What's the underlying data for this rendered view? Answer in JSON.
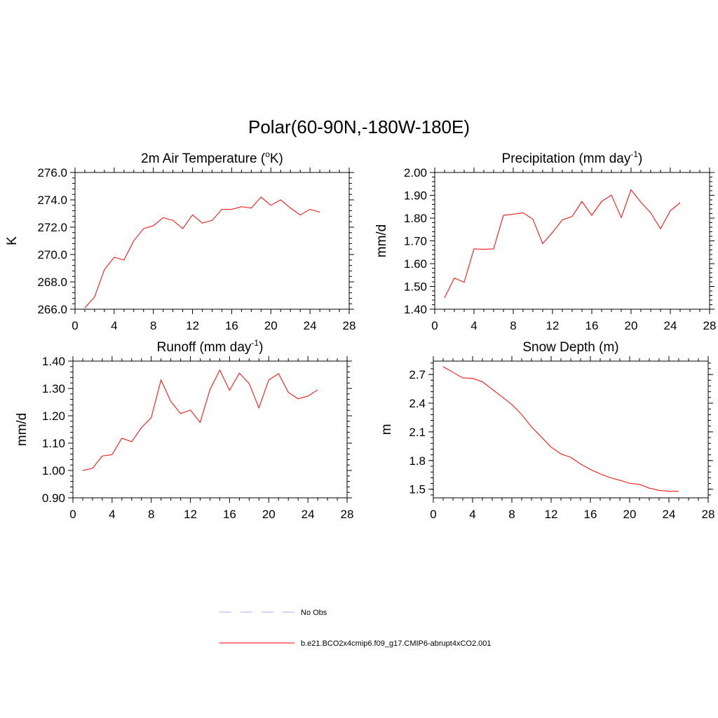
{
  "figure": {
    "title": "Polar(60-90N,-180W-180E)"
  },
  "colors": {
    "model": "#ff0000",
    "obs": "#aaaaff",
    "axis": "#000000",
    "background": "#ffffff"
  },
  "chart_data": [
    {
      "id": "temperature",
      "type": "line",
      "title": "2m Air Temperature (",
      "title_sup": "o",
      "title_after": "K)",
      "ylabel": "K",
      "xlim": [
        0,
        28
      ],
      "ylim": [
        266,
        276
      ],
      "xticks": [
        "0",
        "4",
        "8",
        "12",
        "16",
        "20",
        "24",
        "28"
      ],
      "yticks": [
        "266.0",
        "268.0",
        "270.0",
        "272.0",
        "274.0",
        "276.0"
      ],
      "x": [
        1,
        2,
        3,
        4,
        5,
        6,
        7,
        8,
        9,
        10,
        11,
        12,
        13,
        14,
        15,
        16,
        17,
        18,
        19,
        20,
        21,
        22,
        23,
        24,
        25
      ],
      "series": [
        {
          "name": "b.e21.BCO2x4cmip6.f09_g17.CMIP6-abrupt4xCO2.001",
          "values": [
            266.1,
            266.9,
            268.9,
            269.8,
            269.6,
            271.0,
            271.9,
            272.1,
            272.7,
            272.5,
            271.9,
            272.9,
            272.3,
            272.5,
            273.3,
            273.3,
            273.5,
            273.4,
            274.2,
            273.6,
            274.0,
            273.4,
            272.9,
            273.3,
            273.1
          ]
        }
      ]
    },
    {
      "id": "precipitation",
      "type": "line",
      "title": "Precipitation (mm day",
      "title_sup": "-1",
      "title_after": ")",
      "ylabel": "mm/d",
      "xlim": [
        0,
        28
      ],
      "ylim": [
        1.4,
        2.0
      ],
      "xticks": [
        "0",
        "4",
        "8",
        "12",
        "16",
        "20",
        "24",
        "28"
      ],
      "yticks": [
        "1.40",
        "1.50",
        "1.60",
        "1.70",
        "1.80",
        "1.90",
        "2.00"
      ],
      "x": [
        1,
        2,
        3,
        4,
        5,
        6,
        7,
        8,
        9,
        10,
        11,
        12,
        13,
        14,
        15,
        16,
        17,
        18,
        19,
        20,
        21,
        22,
        23,
        24,
        25
      ],
      "series": [
        {
          "name": "b.e21.BCO2x4cmip6.f09_g17.CMIP6-abrupt4xCO2.001",
          "values": [
            1.45,
            1.537,
            1.518,
            1.665,
            1.663,
            1.665,
            1.812,
            1.817,
            1.823,
            1.795,
            1.688,
            1.737,
            1.792,
            1.807,
            1.873,
            1.812,
            1.873,
            1.901,
            1.802,
            1.924,
            1.87,
            1.823,
            1.753,
            1.832,
            1.867
          ]
        }
      ]
    },
    {
      "id": "runoff",
      "type": "line",
      "title": "Runoff (mm day",
      "title_sup": "-1",
      "title_after": ")",
      "ylabel": "mm/d",
      "xlim": [
        0,
        28
      ],
      "ylim": [
        0.9,
        1.4
      ],
      "xticks": [
        "0",
        "4",
        "8",
        "12",
        "16",
        "20",
        "24",
        "28"
      ],
      "yticks": [
        "0.90",
        "1.00",
        "1.10",
        "1.20",
        "1.30",
        "1.40"
      ],
      "x": [
        1,
        2,
        3,
        4,
        5,
        6,
        7,
        8,
        9,
        10,
        11,
        12,
        13,
        14,
        15,
        16,
        17,
        18,
        19,
        20,
        21,
        22,
        23,
        24,
        25
      ],
      "series": [
        {
          "name": "b.e21.BCO2x4cmip6.f09_g17.CMIP6-abrupt4xCO2.001",
          "values": [
            1.0,
            1.008,
            1.053,
            1.058,
            1.118,
            1.105,
            1.157,
            1.193,
            1.331,
            1.253,
            1.208,
            1.221,
            1.176,
            1.296,
            1.367,
            1.293,
            1.356,
            1.318,
            1.229,
            1.331,
            1.354,
            1.286,
            1.262,
            1.272,
            1.295
          ]
        }
      ]
    },
    {
      "id": "snow",
      "type": "line",
      "title": "Snow Depth (m)",
      "title_sup": "",
      "title_after": "",
      "ylabel": "m",
      "xlim": [
        0,
        28
      ],
      "ylim": [
        1.41,
        2.84
      ],
      "xticks": [
        "0",
        "4",
        "8",
        "12",
        "16",
        "20",
        "24",
        "28"
      ],
      "yticks": [
        "1.5",
        "1.8",
        "2.1",
        "2.4",
        "2.7"
      ],
      "ytick_values": [
        1.5,
        1.8,
        2.1,
        2.4,
        2.7
      ],
      "x": [
        1,
        2,
        3,
        4,
        5,
        6,
        7,
        8,
        9,
        10,
        11,
        12,
        13,
        14,
        15,
        16,
        17,
        18,
        19,
        20,
        21,
        22,
        23,
        24,
        25
      ],
      "series": [
        {
          "name": "b.e21.BCO2x4cmip6.f09_g17.CMIP6-abrupt4xCO2.001",
          "values": [
            2.782,
            2.723,
            2.664,
            2.66,
            2.624,
            2.546,
            2.467,
            2.386,
            2.281,
            2.152,
            2.047,
            1.941,
            1.869,
            1.834,
            1.764,
            1.707,
            1.661,
            1.621,
            1.594,
            1.562,
            1.55,
            1.512,
            1.488,
            1.48,
            1.478
          ]
        }
      ]
    }
  ],
  "legend": [
    {
      "label": "No Obs",
      "style": "dashed",
      "color": "#aaaaff"
    },
    {
      "label": "b.e21.BCO2x4cmip6.f09_g17.CMIP6-abrupt4xCO2.001",
      "style": "solid",
      "color": "#ff0000"
    }
  ]
}
